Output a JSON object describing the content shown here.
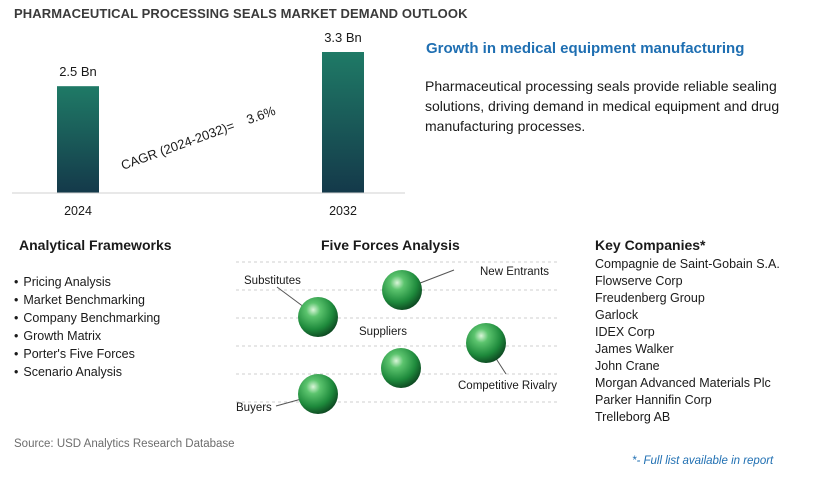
{
  "title": "PHARMACEUTICAL PROCESSING SEALS MARKET DEMAND OUTLOOK",
  "chart_data": {
    "type": "bar",
    "categories": [
      "2024",
      "2032"
    ],
    "values": [
      2.5,
      3.3
    ],
    "value_labels": [
      "2.5 Bn",
      "3.3 Bn"
    ],
    "unit": "Bn",
    "cagr_label": "CAGR (2024-2032)=",
    "cagr_value": "3.6%",
    "ylim": [
      0,
      3.3
    ],
    "colors": {
      "bar_top": "#1f7a66",
      "bar_bottom": "#14394a"
    }
  },
  "headline": "Growth in medical equipment manufacturing",
  "description": "Pharmaceutical processing seals provide reliable sealing solutions, driving demand in medical equipment and drug manufacturing processes.",
  "frameworks": {
    "title": "Analytical Frameworks",
    "items": [
      "Pricing Analysis",
      "Market Benchmarking",
      "Company Benchmarking",
      "Growth Matrix",
      "Porter's Five Forces",
      "Scenario Analysis"
    ]
  },
  "five_forces": {
    "title": "Five Forces Analysis",
    "labels": {
      "substitutes": "Substitutes",
      "new_entrants": "New Entrants",
      "suppliers": "Suppliers",
      "competitive_rivalry": "Competitive Rivalry",
      "buyers": "Buyers"
    },
    "sphere_color": "#2e9a4e"
  },
  "companies": {
    "title": "Key Companies*",
    "items": [
      "Compagnie de Saint-Gobain S.A.",
      "Flowserve Corp",
      "Freudenberg Group",
      "Garlock",
      "IDEX Corp",
      "James Walker",
      "John Crane",
      "Morgan Advanced Materials Plc",
      "Parker Hannifin Corp",
      "Trelleborg AB"
    ]
  },
  "source": "Source: USD Analytics Research Database",
  "footnote": "*- Full list available in report"
}
